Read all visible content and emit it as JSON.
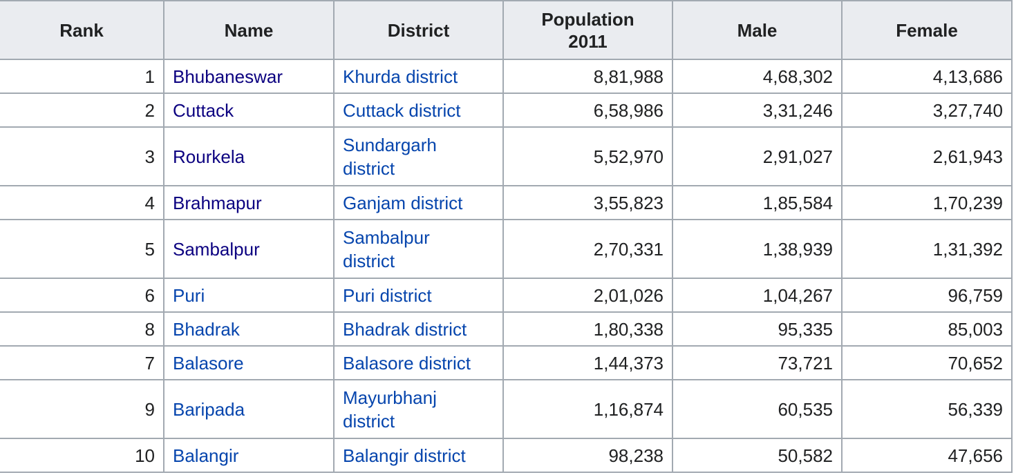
{
  "table": {
    "headers": {
      "rank": "Rank",
      "name": "Name",
      "district": "District",
      "population_line1": "Population",
      "population_line2": "2011",
      "male": "Male",
      "female": "Female"
    },
    "colors": {
      "link": "#0645ad",
      "visited_link": "#0b0080",
      "header_bg": "#eaecf0",
      "border": "#a2a9b1",
      "text": "#202122"
    },
    "rows": [
      {
        "rank": "1",
        "name": "Bhubaneswar",
        "district_line1": "Khurda district",
        "district_line2": "",
        "population": "8,81,988",
        "male": "4,68,302",
        "female": "4,13,686"
      },
      {
        "rank": "2",
        "name": "Cuttack",
        "district_line1": "Cuttack district",
        "district_line2": "",
        "population": "6,58,986",
        "male": "3,31,246",
        "female": "3,27,740"
      },
      {
        "rank": "3",
        "name": "Rourkela",
        "district_line1": "Sundargarh",
        "district_line2": "district",
        "population": "5,52,970",
        "male": "2,91,027",
        "female": "2,61,943"
      },
      {
        "rank": "4",
        "name": "Brahmapur",
        "district_line1": "Ganjam district",
        "district_line2": "",
        "population": "3,55,823",
        "male": "1,85,584",
        "female": "1,70,239"
      },
      {
        "rank": "5",
        "name": "Sambalpur",
        "district_line1": "Sambalpur",
        "district_line2": "district",
        "population": "2,70,331",
        "male": "1,38,939",
        "female": "1,31,392"
      },
      {
        "rank": "6",
        "name": "Puri",
        "district_line1": "Puri district",
        "district_line2": "",
        "population": "2,01,026",
        "male": "1,04,267",
        "female": "96,759"
      },
      {
        "rank": "8",
        "name": "Bhadrak",
        "district_line1": "Bhadrak district",
        "district_line2": "",
        "population": "1,80,338",
        "male": "95,335",
        "female": "85,003"
      },
      {
        "rank": "7",
        "name": "Balasore",
        "district_line1": "Balasore district",
        "district_line2": "",
        "population": "1,44,373",
        "male": "73,721",
        "female": "70,652"
      },
      {
        "rank": "9",
        "name": "Baripada",
        "district_line1": "Mayurbhanj",
        "district_line2": "district",
        "population": "1,16,874",
        "male": "60,535",
        "female": "56,339"
      },
      {
        "rank": "10",
        "name": "Balangir",
        "district_line1": "Balangir district",
        "district_line2": "",
        "population": "98,238",
        "male": "50,582",
        "female": "47,656"
      }
    ]
  }
}
